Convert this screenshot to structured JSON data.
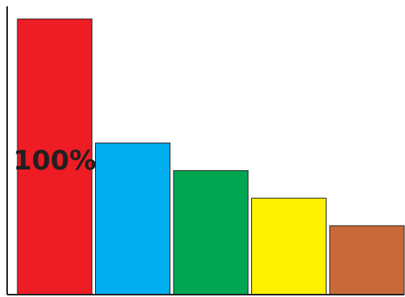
{
  "chart_data": {
    "type": "bar",
    "values": [
      100,
      55,
      45,
      35,
      25
    ],
    "colors": [
      "#ee1c25",
      "#00aeef",
      "#00a651",
      "#fff200",
      "#c8693a"
    ],
    "bar_outline_color": "#231f20",
    "axis_color": "#231f20",
    "ylim": [
      0,
      100
    ],
    "grid": false,
    "legend": "none",
    "annotations": [
      {
        "bar_index": 0,
        "text": "100%"
      }
    ]
  }
}
